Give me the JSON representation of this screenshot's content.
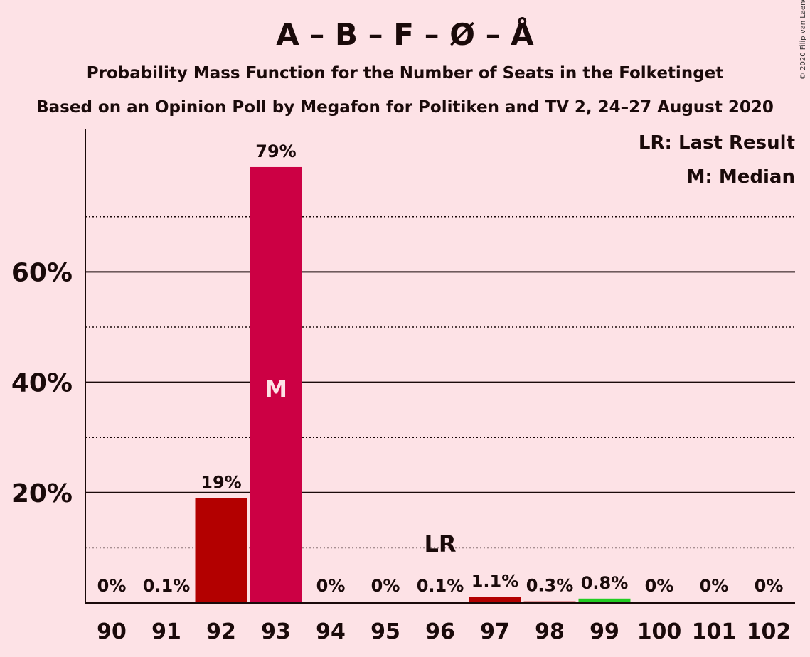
{
  "chart_data": {
    "type": "bar",
    "title": "A – B – F – Ø – Å",
    "subtitle": "Probability Mass Function for the Number of Seats in the Folketinget",
    "subtitle2": "Based on an Opinion Poll by Megafon for Politiken and TV 2, 24–27 August 2020",
    "copyright": "© 2020 Filip van Laenen",
    "categories": [
      "90",
      "91",
      "92",
      "93",
      "94",
      "95",
      "96",
      "97",
      "98",
      "99",
      "100",
      "101",
      "102"
    ],
    "values": [
      0,
      0.1,
      19,
      79,
      0,
      0,
      0.1,
      1.1,
      0.3,
      0.8,
      0,
      0,
      0
    ],
    "value_labels": [
      "0%",
      "0.1%",
      "19%",
      "79%",
      "0%",
      "0%",
      "0.1%",
      "1.1%",
      "0.3%",
      "0.8%",
      "0%",
      "0%",
      "0%"
    ],
    "bar_colors": [
      "#b30000",
      "#b30000",
      "#b30000",
      "#cc0044",
      "#b30000",
      "#b30000",
      "#b30000",
      "#b30000",
      "#b30000",
      "#22cc22",
      "#b30000",
      "#b30000",
      "#b30000"
    ],
    "y_ticks": [
      "20%",
      "40%",
      "60%"
    ],
    "y_tick_values": [
      20,
      40,
      60
    ],
    "y_minor_ticks": [
      10,
      30,
      50,
      70
    ],
    "ylim": [
      0,
      86
    ],
    "median_category": "93",
    "median_mark": "M",
    "last_result_category": "96",
    "last_result_mark": "LR",
    "legend": [
      "LR: Last Result",
      "M: Median"
    ],
    "legend_placement": "top-right",
    "grid": true
  }
}
